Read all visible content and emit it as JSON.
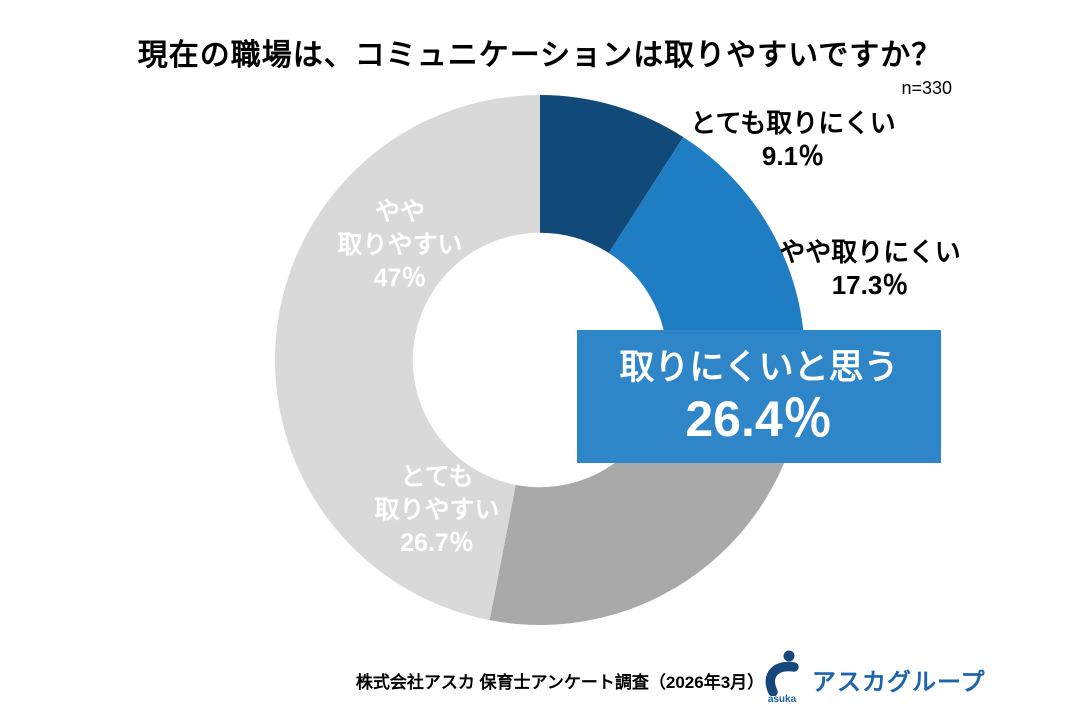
{
  "title": "現在の職場は、コミュニケーションは取りやすいですか？",
  "sample_label": "n=330",
  "chart_data": {
    "type": "pie",
    "subtype": "donut",
    "title": "現在の職場は、コミュニケーションは取りやすいですか？",
    "sample_size": 330,
    "start_angle_deg": -90,
    "direction": "clockwise",
    "inner_radius_ratio": 0.48,
    "legend_position": "none",
    "categories": [
      "とても取りにくい",
      "やや取りにくい",
      "とても取りやすい",
      "やや取りやすい"
    ],
    "values": [
      9.1,
      17.3,
      26.7,
      47
    ],
    "value_labels": [
      "9.1％",
      "17.3％",
      "26.7％",
      "47％"
    ],
    "colors": [
      "#114a79",
      "#1f7dc4",
      "#a9a9a9",
      "#d9d9d9"
    ],
    "callout": {
      "label": "取りにくいと思う",
      "value_num": 26.4,
      "value_label": "26.4％"
    }
  },
  "segment_labels": {
    "very_hard": {
      "name": "とても取りにくい",
      "pct": "9.1％"
    },
    "somewhat_hard": {
      "name": "やや取りにくい",
      "pct": "17.3％"
    },
    "somewhat_easy": {
      "name_line1": "やや",
      "name_line2": "取りやすい",
      "pct": "47％"
    },
    "very_easy": {
      "name_line1": "とても",
      "name_line2": "取りやすい",
      "pct": "26.7％"
    }
  },
  "callout_box": {
    "line1": "取りにくいと思う",
    "line2": "26.4％",
    "bg_color": "#2e86c8",
    "text_color": "#ffffff"
  },
  "footer": {
    "source": "株式会社アスカ 保育士アンケート調査（2026年3月）",
    "logo_text": "アスカグループ",
    "logo_sub": "asuka",
    "logo_icon_color": "#16477c",
    "logo_text_color": "#1d64ae"
  }
}
